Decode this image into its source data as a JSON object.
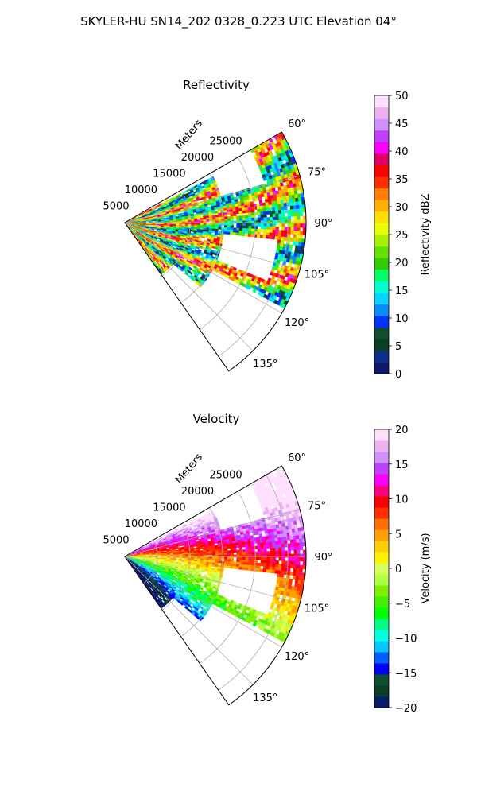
{
  "figure": {
    "suptitle": "SKYLER-HU  SN14_202  0328_0.223 UTC Elevation 04°"
  },
  "chart_data": [
    {
      "type": "heatmap",
      "subtype": "polar-sector-radar",
      "title": "Reflectivity",
      "radial_axis_label": "Meters",
      "radial_ticks": [
        "5000",
        "10000",
        "15000",
        "20000",
        "25000"
      ],
      "radial_tick_values": [
        5000,
        10000,
        15000,
        20000,
        25000
      ],
      "radial_range": [
        0,
        25000
      ],
      "azimuth_ticks": [
        "60°",
        "75°",
        "90°",
        "105°",
        "120°",
        "135°"
      ],
      "azimuth_tick_values": [
        60,
        75,
        90,
        105,
        120,
        135
      ],
      "azimuth_range": [
        60,
        145
      ],
      "grid": true,
      "colorbar": {
        "label": "Reflectivity dBZ",
        "range": [
          0,
          50
        ],
        "ticks": [
          "0",
          "5",
          "10",
          "15",
          "20",
          "25",
          "30",
          "35",
          "40",
          "45",
          "50"
        ],
        "tick_values": [
          0,
          5,
          10,
          15,
          20,
          25,
          30,
          35,
          40,
          45,
          50
        ],
        "colormap": [
          "#0a1a6b",
          "#0d2f8a",
          "#0b3d2a",
          "#114f2f",
          "#0033ff",
          "#0a8cff",
          "#00d8ff",
          "#00ffd0",
          "#00ff6a",
          "#33cc00",
          "#66e000",
          "#a8f000",
          "#e8ff00",
          "#ffe000",
          "#ffb000",
          "#ff8000",
          "#ff3000",
          "#ff0000",
          "#e00060",
          "#ff00ff",
          "#c040ff",
          "#d090ff",
          "#f0b0f0",
          "#ffe0ff"
        ]
      }
    },
    {
      "type": "heatmap",
      "subtype": "polar-sector-radar",
      "title": "Velocity",
      "radial_axis_label": "Meters",
      "radial_ticks": [
        "5000",
        "10000",
        "15000",
        "20000",
        "25000"
      ],
      "radial_tick_values": [
        5000,
        10000,
        15000,
        20000,
        25000
      ],
      "radial_range": [
        0,
        25000
      ],
      "azimuth_ticks": [
        "60°",
        "75°",
        "90°",
        "105°",
        "120°",
        "135°"
      ],
      "azimuth_tick_values": [
        60,
        75,
        90,
        105,
        120,
        135
      ],
      "azimuth_range": [
        60,
        145
      ],
      "grid": true,
      "colorbar": {
        "label": "Velocity (m/s)",
        "range": [
          -20,
          20
        ],
        "ticks": [
          "−20",
          "−15",
          "−10",
          "−5",
          "0",
          "5",
          "10",
          "15",
          "20"
        ],
        "tick_values": [
          -20,
          -15,
          -10,
          -5,
          0,
          5,
          10,
          15,
          20
        ],
        "colormap": [
          "#0a1a6b",
          "#0b3d2a",
          "#114f2f",
          "#0000ff",
          "#0060ff",
          "#00c8ff",
          "#00ffe0",
          "#00ff80",
          "#00ff00",
          "#40f000",
          "#80f000",
          "#b0ff40",
          "#d8ff60",
          "#fff000",
          "#ffd000",
          "#ffa000",
          "#ff7000",
          "#ff3000",
          "#ff0000",
          "#ff0080",
          "#ff00ff",
          "#c040ff",
          "#d090ff",
          "#f0b0f0",
          "#ffe0ff"
        ]
      }
    }
  ]
}
